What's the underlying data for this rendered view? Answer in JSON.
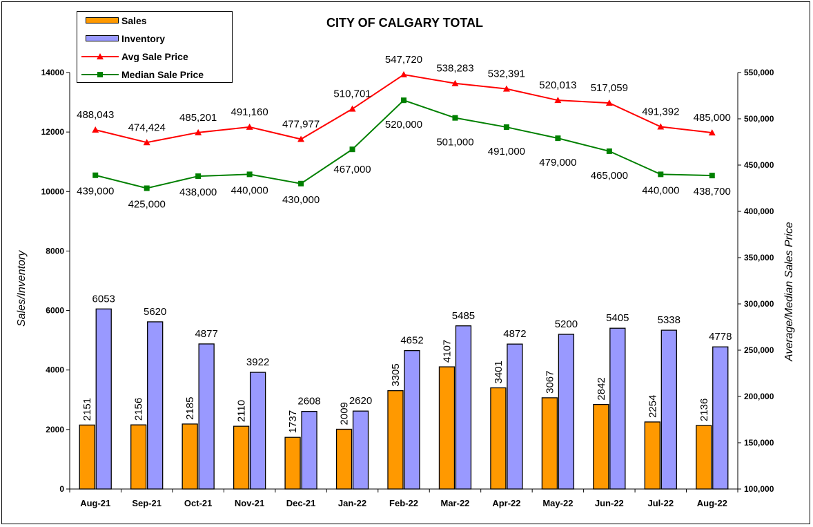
{
  "chart_data": {
    "type": "bar",
    "title": "CITY OF CALGARY TOTAL",
    "categories": [
      "Aug-21",
      "Sep-21",
      "Oct-21",
      "Nov-21",
      "Dec-21",
      "Jan-22",
      "Feb-22",
      "Mar-22",
      "Apr-22",
      "May-22",
      "Jun-22",
      "Jul-22",
      "Aug-22"
    ],
    "bar_series": [
      {
        "name": "Sales",
        "color": "#FF9900",
        "values": [
          2151,
          2156,
          2185,
          2110,
          1737,
          2009,
          3305,
          4107,
          3401,
          3067,
          2842,
          2254,
          2136
        ]
      },
      {
        "name": "Inventory",
        "color": "#9999FF",
        "values": [
          6053,
          5620,
          4877,
          3922,
          2608,
          2620,
          4652,
          5485,
          4872,
          5200,
          5405,
          5338,
          4778
        ]
      }
    ],
    "line_series": [
      {
        "name": "Avg Sale Price",
        "color": "#FF0000",
        "marker": "triangle",
        "values": [
          488043,
          474424,
          485201,
          491160,
          477977,
          510701,
          547720,
          538283,
          532391,
          520013,
          517059,
          491392,
          485000
        ],
        "labels": [
          "488,043",
          "474,424",
          "485,201",
          "491,160",
          "477,977",
          "510,701",
          "547,720",
          "538,283",
          "532,391",
          "520,013",
          "517,059",
          "491,392",
          "485,000"
        ]
      },
      {
        "name": "Median Sale Price",
        "color": "#008000",
        "marker": "square",
        "values": [
          439000,
          425000,
          438000,
          440000,
          430000,
          467000,
          520000,
          501000,
          491000,
          479000,
          465000,
          440000,
          438700
        ],
        "labels": [
          "439,000",
          "425,000",
          "438,000",
          "440,000",
          "430,000",
          "467,000",
          "520,000",
          "501,000",
          "491,000",
          "479,000",
          "465,000",
          "440,000",
          "438,700"
        ]
      }
    ],
    "ylabel": "Sales/Inventory",
    "ylabel_right": "Average/Median Sales Price",
    "ylim": [
      0,
      14000
    ],
    "ylim_right": [
      100000,
      550000
    ],
    "yticks": [
      "0",
      "2000",
      "4000",
      "6000",
      "8000",
      "10000",
      "12000",
      "14000"
    ],
    "yticks_right": [
      "100,000",
      "150,000",
      "200,000",
      "250,000",
      "300,000",
      "350,000",
      "400,000",
      "450,000",
      "500,000",
      "550,000"
    ],
    "grid": false,
    "legend_position": "top-left"
  }
}
